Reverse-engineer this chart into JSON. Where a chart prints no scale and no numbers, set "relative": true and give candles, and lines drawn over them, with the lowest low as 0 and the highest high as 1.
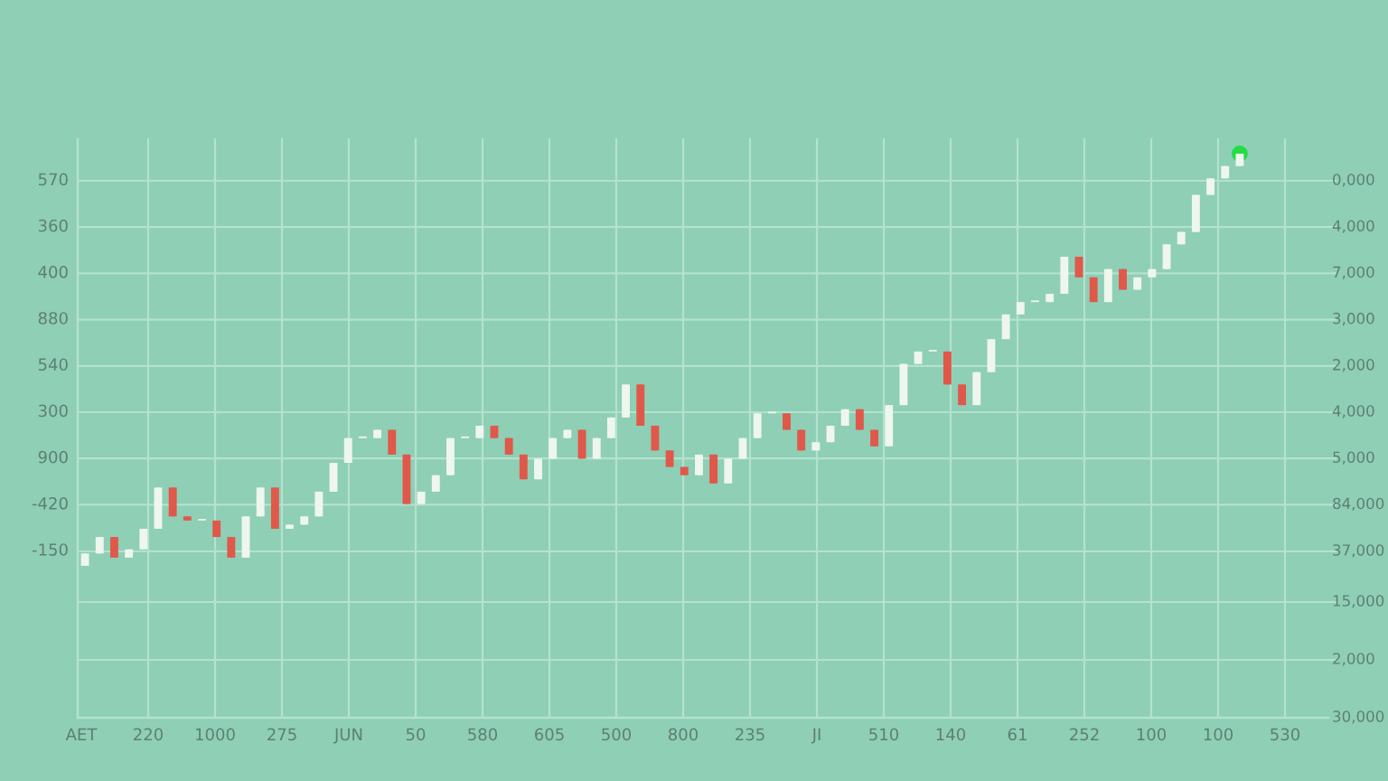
{
  "chart_data": {
    "type": "candlestick",
    "relative": true,
    "categories": [
      null,
      null,
      null,
      null,
      null,
      null,
      null,
      null,
      null,
      null,
      null,
      null,
      null,
      null,
      null,
      null,
      null,
      null,
      null,
      null,
      null,
      null,
      null,
      null,
      null,
      null,
      null,
      null,
      null,
      null,
      null,
      null,
      null,
      null,
      null,
      null,
      null,
      null,
      null,
      null,
      null,
      null,
      null,
      null,
      null,
      null,
      null,
      null,
      null,
      null,
      null,
      null,
      null,
      null,
      null,
      null,
      null,
      null,
      null,
      null,
      null,
      null,
      null,
      null,
      null,
      null,
      null,
      null,
      null,
      null,
      null,
      null,
      null,
      null,
      null,
      null,
      null,
      null,
      null,
      null
    ],
    "ohlc": [
      [
        0.0,
        0.03,
        0.0,
        0.03
      ],
      [
        0.03,
        0.07,
        0.03,
        0.07
      ],
      [
        0.07,
        0.07,
        0.02,
        0.02
      ],
      [
        0.02,
        0.04,
        0.02,
        0.04
      ],
      [
        0.04,
        0.09,
        0.04,
        0.09
      ],
      [
        0.09,
        0.19,
        0.09,
        0.19
      ],
      [
        0.19,
        0.19,
        0.12,
        0.12
      ],
      [
        0.12,
        0.12,
        0.11,
        0.11
      ],
      [
        0.11,
        0.11,
        0.11,
        0.11
      ],
      [
        0.11,
        0.11,
        0.07,
        0.07
      ],
      [
        0.07,
        0.07,
        0.02,
        0.02
      ],
      [
        0.02,
        0.12,
        0.02,
        0.12
      ],
      [
        0.12,
        0.19,
        0.12,
        0.19
      ],
      [
        0.19,
        0.19,
        0.09,
        0.09
      ],
      [
        0.09,
        0.1,
        0.09,
        0.1
      ],
      [
        0.1,
        0.12,
        0.1,
        0.12
      ],
      [
        0.12,
        0.18,
        0.12,
        0.18
      ],
      [
        0.18,
        0.25,
        0.18,
        0.25
      ],
      [
        0.25,
        0.31,
        0.25,
        0.31
      ],
      [
        0.31,
        0.31,
        0.31,
        0.31
      ],
      [
        0.31,
        0.33,
        0.31,
        0.33
      ],
      [
        0.33,
        0.33,
        0.27,
        0.27
      ],
      [
        0.27,
        0.27,
        0.15,
        0.15
      ],
      [
        0.15,
        0.18,
        0.15,
        0.18
      ],
      [
        0.18,
        0.22,
        0.18,
        0.22
      ],
      [
        0.22,
        0.31,
        0.22,
        0.31
      ],
      [
        0.31,
        0.31,
        0.31,
        0.31
      ],
      [
        0.31,
        0.34,
        0.31,
        0.34
      ],
      [
        0.34,
        0.34,
        0.31,
        0.31
      ],
      [
        0.31,
        0.31,
        0.27,
        0.27
      ],
      [
        0.27,
        0.27,
        0.21,
        0.21
      ],
      [
        0.21,
        0.26,
        0.21,
        0.26
      ],
      [
        0.26,
        0.31,
        0.26,
        0.31
      ],
      [
        0.31,
        0.33,
        0.31,
        0.33
      ],
      [
        0.33,
        0.33,
        0.26,
        0.26
      ],
      [
        0.26,
        0.31,
        0.26,
        0.31
      ],
      [
        0.31,
        0.36,
        0.31,
        0.36
      ],
      [
        0.36,
        0.44,
        0.36,
        0.44
      ],
      [
        0.44,
        0.44,
        0.34,
        0.34
      ],
      [
        0.34,
        0.34,
        0.28,
        0.28
      ],
      [
        0.28,
        0.28,
        0.24,
        0.24
      ],
      [
        0.24,
        0.24,
        0.22,
        0.22
      ],
      [
        0.22,
        0.27,
        0.22,
        0.27
      ],
      [
        0.27,
        0.27,
        0.2,
        0.2
      ],
      [
        0.2,
        0.26,
        0.2,
        0.26
      ],
      [
        0.26,
        0.31,
        0.26,
        0.31
      ],
      [
        0.31,
        0.37,
        0.31,
        0.37
      ],
      [
        0.37,
        0.37,
        0.37,
        0.37
      ],
      [
        0.37,
        0.37,
        0.33,
        0.33
      ],
      [
        0.33,
        0.33,
        0.28,
        0.28
      ],
      [
        0.28,
        0.3,
        0.28,
        0.3
      ],
      [
        0.3,
        0.34,
        0.3,
        0.34
      ],
      [
        0.34,
        0.38,
        0.34,
        0.38
      ],
      [
        0.38,
        0.38,
        0.33,
        0.33
      ],
      [
        0.33,
        0.33,
        0.29,
        0.29
      ],
      [
        0.29,
        0.39,
        0.29,
        0.39
      ],
      [
        0.39,
        0.49,
        0.39,
        0.49
      ],
      [
        0.49,
        0.52,
        0.49,
        0.52
      ],
      [
        0.52,
        0.52,
        0.52,
        0.52
      ],
      [
        0.52,
        0.52,
        0.44,
        0.44
      ],
      [
        0.44,
        0.44,
        0.39,
        0.39
      ],
      [
        0.39,
        0.47,
        0.39,
        0.47
      ],
      [
        0.47,
        0.55,
        0.47,
        0.55
      ],
      [
        0.55,
        0.61,
        0.55,
        0.61
      ],
      [
        0.61,
        0.64,
        0.61,
        0.64
      ],
      [
        0.64,
        0.64,
        0.64,
        0.64
      ],
      [
        0.64,
        0.66,
        0.64,
        0.66
      ],
      [
        0.66,
        0.75,
        0.66,
        0.75
      ],
      [
        0.75,
        0.75,
        0.7,
        0.7
      ],
      [
        0.7,
        0.7,
        0.64,
        0.64
      ],
      [
        0.64,
        0.72,
        0.64,
        0.72
      ],
      [
        0.72,
        0.72,
        0.67,
        0.67
      ],
      [
        0.67,
        0.7,
        0.67,
        0.7
      ],
      [
        0.7,
        0.72,
        0.7,
        0.72
      ],
      [
        0.72,
        0.78,
        0.72,
        0.78
      ],
      [
        0.78,
        0.81,
        0.78,
        0.81
      ],
      [
        0.81,
        0.9,
        0.81,
        0.9
      ],
      [
        0.9,
        0.94,
        0.9,
        0.94
      ],
      [
        0.94,
        0.97,
        0.94,
        0.97
      ],
      [
        0.97,
        1.0,
        0.97,
        1.0
      ]
    ],
    "colors": [
      "#eef6ee",
      "#eef6ee",
      "#e0584a",
      "#eef6ee",
      "#eef6ee",
      "#eef6ee",
      "#e0584a",
      "#e0584a",
      "#eef6ee",
      "#e0584a",
      "#e0584a",
      "#eef6ee",
      "#eef6ee",
      "#e0584a",
      "#eef6ee",
      "#eef6ee",
      "#eef6ee",
      "#eef6ee",
      "#eef6ee",
      "#eef6ee",
      "#eef6ee",
      "#e0584a",
      "#e0584a",
      "#eef6ee",
      "#eef6ee",
      "#eef6ee",
      "#eef6ee",
      "#eef6ee",
      "#e0584a",
      "#e0584a",
      "#e0584a",
      "#eef6ee",
      "#eef6ee",
      "#eef6ee",
      "#e0584a",
      "#eef6ee",
      "#eef6ee",
      "#eef6ee",
      "#e0584a",
      "#e0584a",
      "#e0584a",
      "#e0584a",
      "#eef6ee",
      "#e0584a",
      "#eef6ee",
      "#eef6ee",
      "#eef6ee",
      "#eef6ee",
      "#e0584a",
      "#e0584a",
      "#eef6ee",
      "#eef6ee",
      "#eef6ee",
      "#e0584a",
      "#e0584a",
      "#eef6ee",
      "#eef6ee",
      "#eef6ee",
      "#eef6ee",
      "#e0584a",
      "#e0584a",
      "#eef6ee",
      "#eef6ee",
      "#eef6ee",
      "#eef6ee",
      "#eef6ee",
      "#eef6ee",
      "#eef6ee",
      "#e0584a",
      "#e0584a",
      "#eef6ee",
      "#e0584a",
      "#eef6ee",
      "#eef6ee",
      "#eef6ee",
      "#eef6ee",
      "#eef6ee",
      "#eef6ee",
      "#eef6ee",
      "#eef6ee"
    ],
    "series": [
      {
        "type": "scatter",
        "color": "#22dd44",
        "marker": "circle",
        "values": [
          null,
          null,
          null,
          null,
          null,
          null,
          null,
          null,
          null,
          null,
          null,
          null,
          null,
          null,
          null,
          null,
          null,
          null,
          null,
          null,
          null,
          null,
          null,
          null,
          null,
          null,
          null,
          null,
          null,
          null,
          null,
          null,
          null,
          null,
          null,
          null,
          null,
          null,
          null,
          null,
          null,
          null,
          null,
          null,
          null,
          null,
          null,
          null,
          null,
          null,
          null,
          null,
          null,
          null,
          null,
          null,
          null,
          null,
          null,
          null,
          null,
          null,
          null,
          null,
          null,
          null,
          null,
          null,
          null,
          null,
          null,
          null,
          null,
          null,
          null,
          null,
          null,
          null,
          null,
          1.0
        ]
      }
    ],
    "annotations": [
      "AET",
      "220",
      "1000",
      "275",
      "JUN",
      "50",
      "580",
      "605",
      "500",
      "800",
      "235",
      "JI",
      "510",
      "140",
      "61",
      "252",
      "100",
      "100",
      "530",
      "570",
      "360",
      "400",
      "880",
      "540",
      "300",
      "900",
      "-420",
      "-150",
      "0,000",
      "4,000",
      "7,000",
      "3,000",
      "2,000",
      "4,000",
      "5,000",
      "84,000",
      "37,000",
      "15,000",
      "2,000",
      "30,000"
    ],
    "grid": true
  }
}
